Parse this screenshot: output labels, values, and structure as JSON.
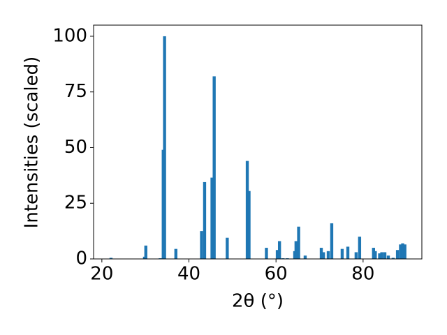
{
  "chart_data": {
    "type": "bar",
    "x_label": "2θ (°)",
    "y_label": "Intensities (scaled)",
    "x": [
      22.1,
      29.8,
      30.1,
      33.4,
      34.1,
      34.4,
      37.0,
      42.9,
      43.6,
      45.3,
      45.8,
      48.8,
      53.4,
      53.8,
      57.8,
      60.3,
      60.8,
      61.6,
      62.6,
      64.3,
      64.6,
      65.2,
      66.7,
      70.4,
      70.9,
      72.0,
      72.8,
      75.2,
      76.5,
      78.4,
      79.2,
      82.4,
      82.8,
      83.8,
      84.3,
      85.0,
      85.8,
      86.9,
      87.9,
      88.6,
      89.1,
      89.6
    ],
    "values": [
      0.5,
      1,
      6,
      0.3,
      49,
      100,
      4.5,
      12.5,
      34.5,
      36.5,
      82,
      9.5,
      44,
      30.5,
      5,
      4,
      8,
      0.3,
      0.3,
      3.5,
      8,
      14.5,
      1.5,
      5,
      3,
      3.5,
      16,
      4.5,
      5.5,
      3,
      10,
      5,
      3.5,
      2.5,
      3,
      3,
      1.5,
      0.5,
      4,
      6.5,
      7,
      6.5
    ],
    "color": "#1f77b4",
    "xlim": [
      18.1,
      93.5
    ],
    "ylim": [
      0,
      105
    ],
    "xticks": [
      20,
      40,
      60,
      80
    ],
    "yticks": [
      0,
      25,
      50,
      75,
      100
    ]
  }
}
